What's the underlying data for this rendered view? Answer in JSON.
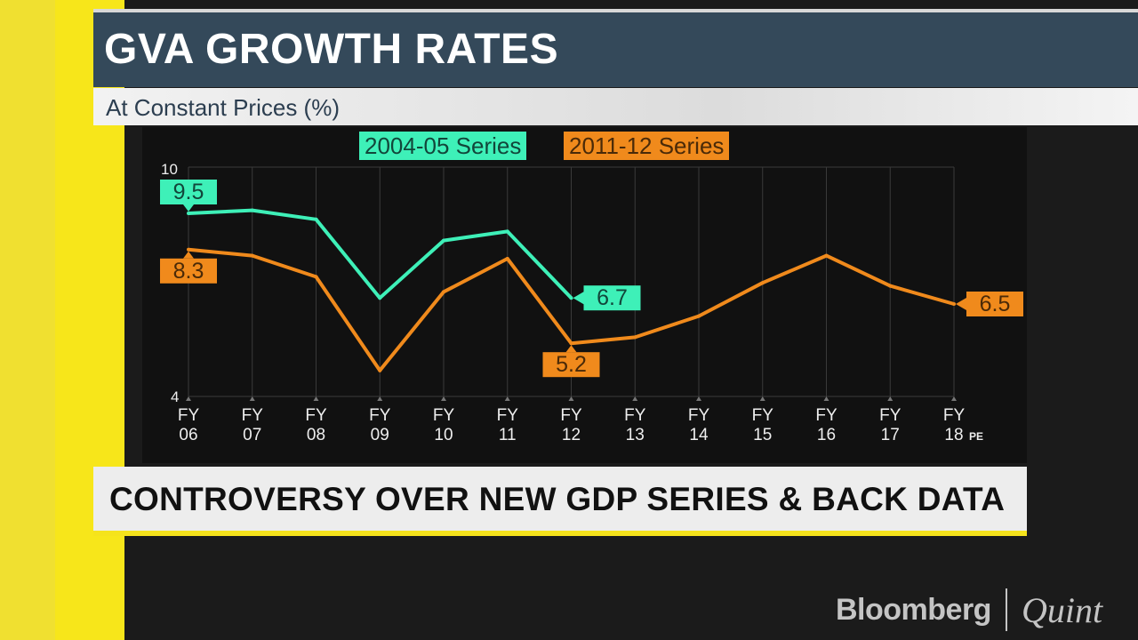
{
  "header": {
    "title": "GVA GROWTH RATES",
    "subtitle": "At Constant Prices (%)"
  },
  "banner": {
    "text": "CONTROVERSY OVER NEW GDP SERIES & BACK DATA"
  },
  "logo": {
    "brand": "Bloomberg",
    "sub_brand": "Quint"
  },
  "colors": {
    "series_2004": "#3ef0b8",
    "series_2011": "#f08a1c",
    "accent_yellow": "#f5e31c",
    "title_bar": "#34495a"
  },
  "chart_data": {
    "type": "line",
    "title": "GVA GROWTH RATES",
    "subtitle": "At Constant Prices (%)",
    "categories": [
      "FY 06",
      "FY 07",
      "FY 08",
      "FY 09",
      "FY 10",
      "FY 11",
      "FY 12",
      "FY 13",
      "FY 14",
      "FY 15",
      "FY 16",
      "FY 17",
      "FY 18"
    ],
    "category_lines": [
      [
        "FY",
        "06"
      ],
      [
        "FY",
        "07"
      ],
      [
        "FY",
        "08"
      ],
      [
        "FY",
        "09"
      ],
      [
        "FY",
        "10"
      ],
      [
        "FY",
        "11"
      ],
      [
        "FY",
        "12"
      ],
      [
        "FY",
        "13"
      ],
      [
        "FY",
        "14"
      ],
      [
        "FY",
        "15"
      ],
      [
        "FY",
        "16"
      ],
      [
        "FY",
        "17"
      ],
      [
        "FY",
        "18"
      ]
    ],
    "last_category_note": "PE",
    "yticks": [
      "10",
      "4"
    ],
    "ylim": [
      4,
      10
    ],
    "grid": true,
    "legend_placement": "top-center",
    "series": [
      {
        "name": "2004-05 Series",
        "color": "#3ef0b8",
        "values": [
          9.5,
          9.6,
          9.3,
          6.7,
          8.6,
          8.9,
          6.7,
          null,
          null,
          null,
          null,
          null,
          null
        ],
        "data_labels": [
          {
            "index": 0,
            "text": "9.5"
          },
          {
            "index": 6,
            "text": "6.7"
          }
        ]
      },
      {
        "name": "2011-12 Series",
        "color": "#f08a1c",
        "values": [
          8.3,
          8.1,
          7.4,
          4.3,
          6.9,
          8.0,
          5.2,
          5.4,
          6.1,
          7.2,
          8.1,
          7.1,
          6.5
        ],
        "data_labels": [
          {
            "index": 0,
            "text": "8.3"
          },
          {
            "index": 6,
            "text": "5.2"
          },
          {
            "index": 12,
            "text": "6.5"
          }
        ]
      }
    ]
  }
}
